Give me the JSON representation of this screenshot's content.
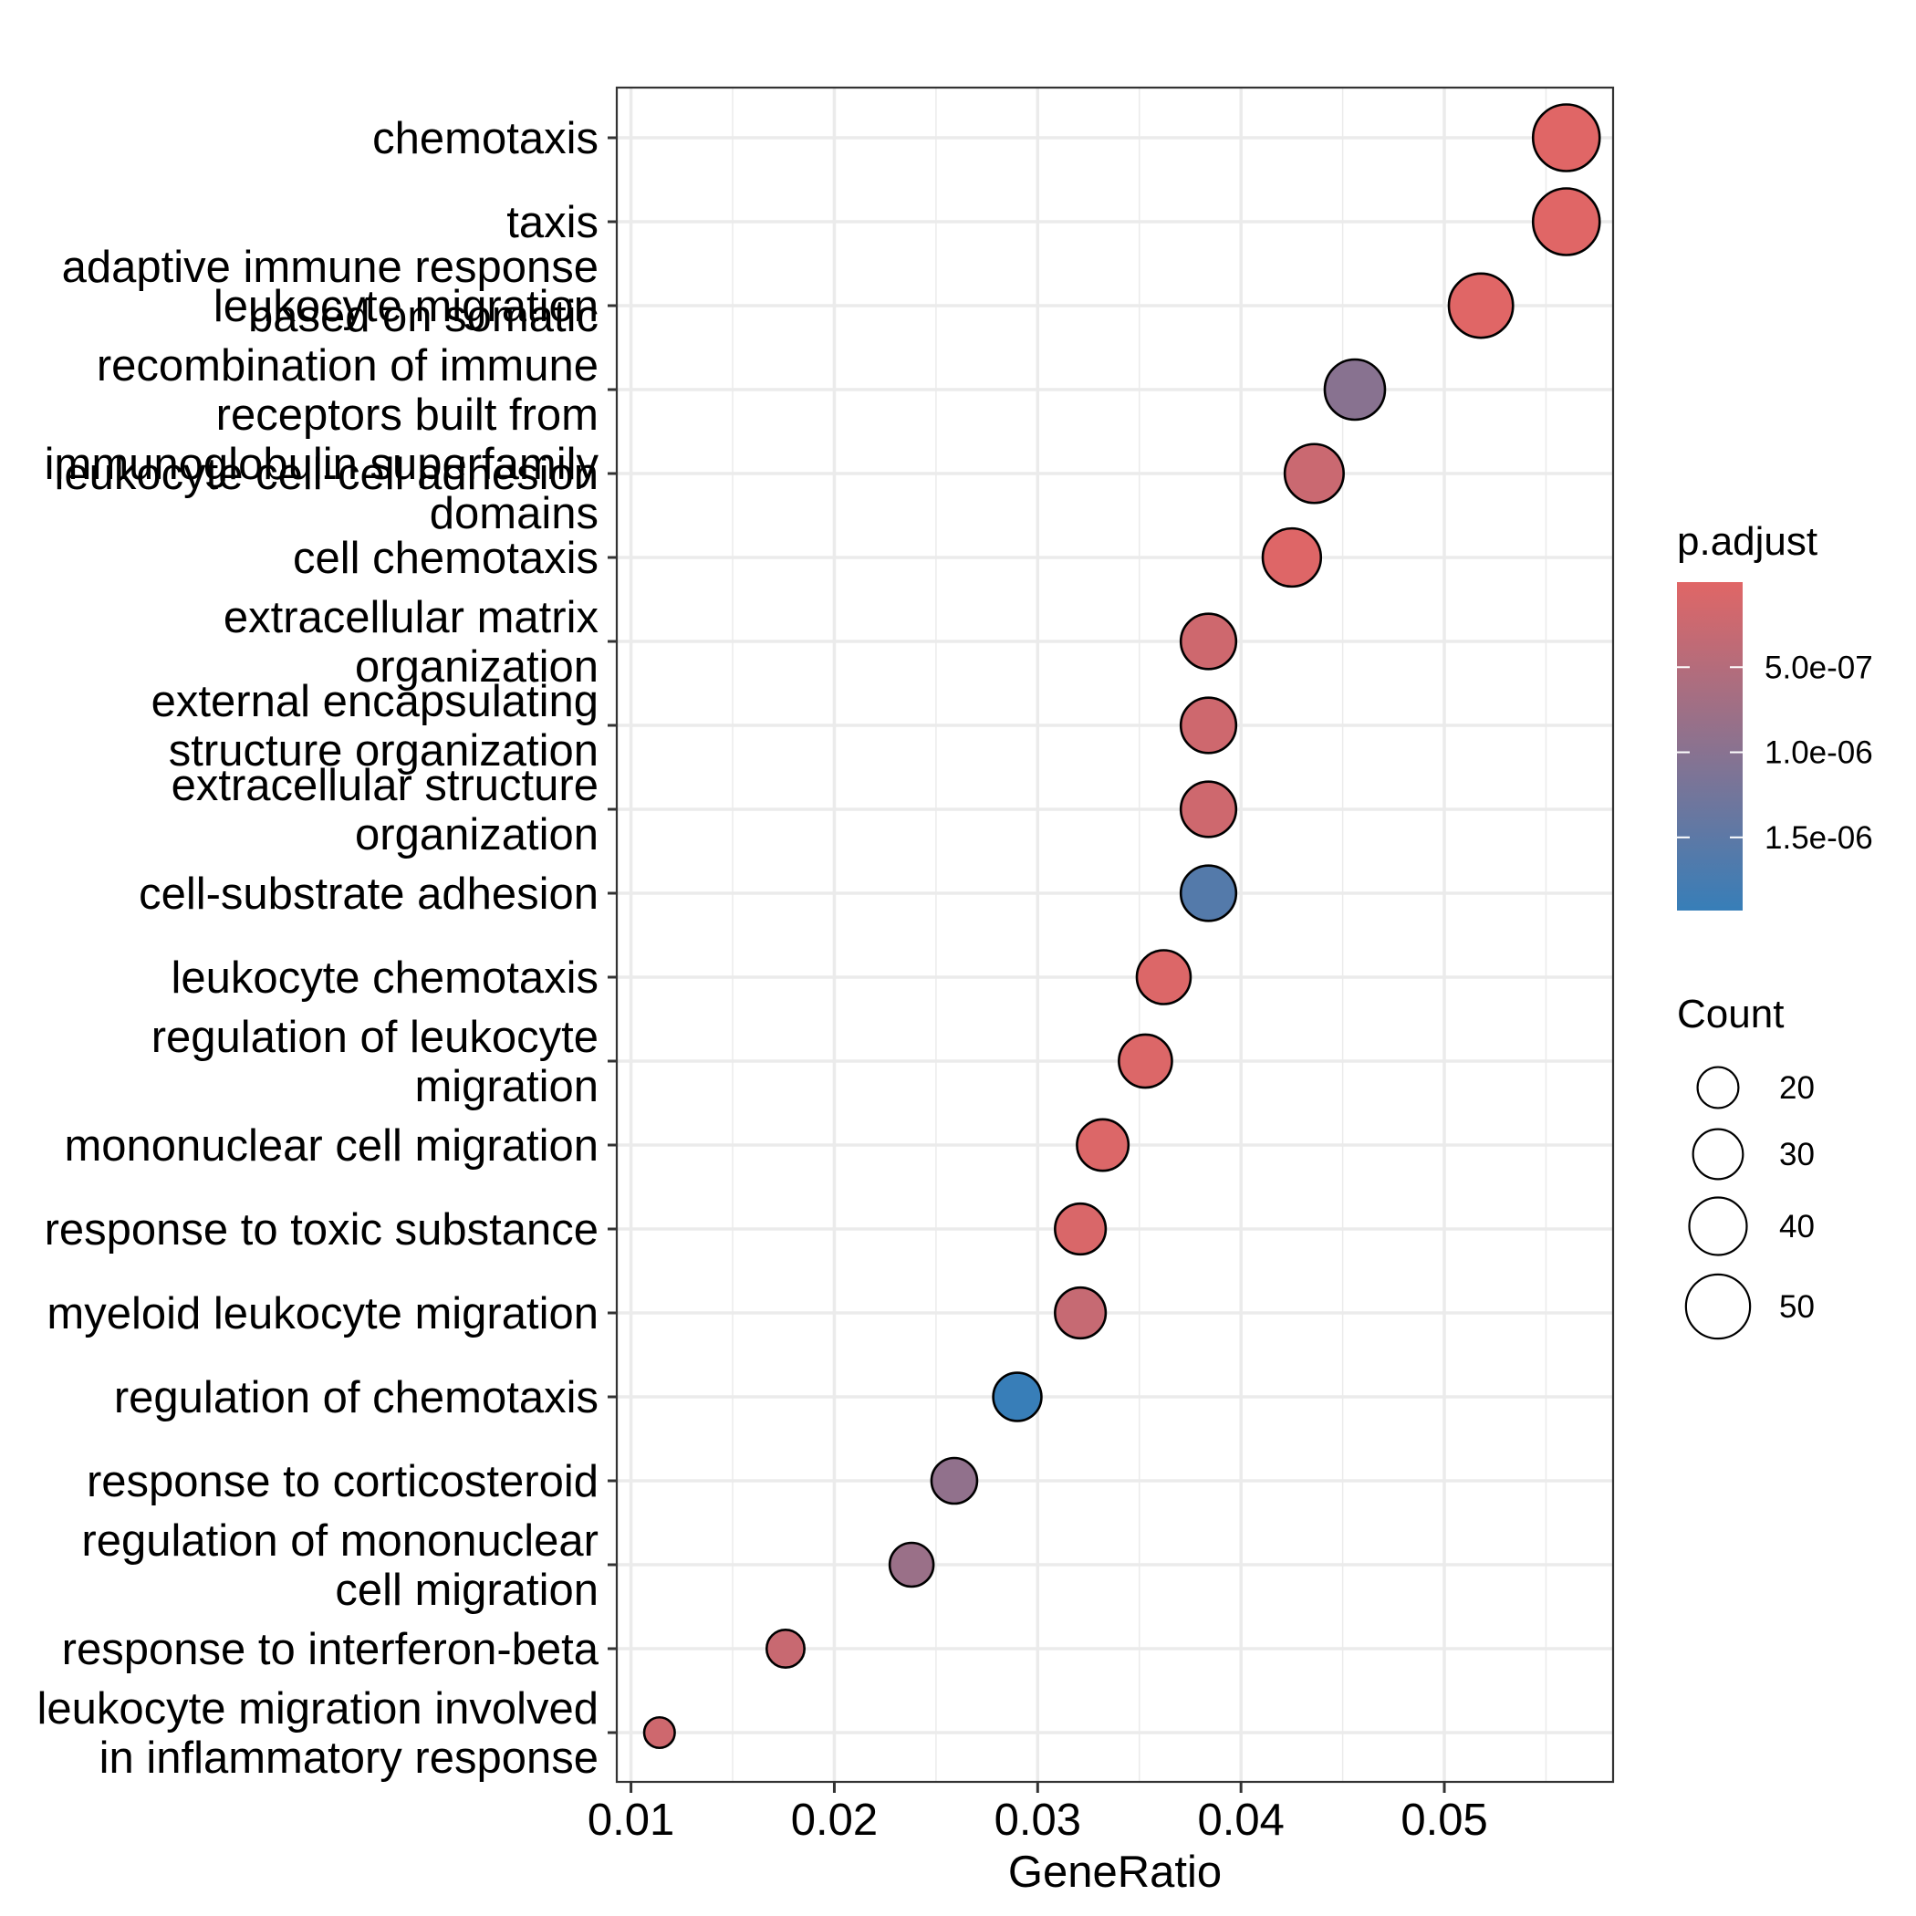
{
  "chart_data": {
    "type": "scatter",
    "subtype": "dotplot",
    "title": "",
    "xlabel": "GeneRatio",
    "ylabel": "",
    "xlim": [
      0.0093,
      0.0583
    ],
    "xticks": [
      0.01,
      0.02,
      0.03,
      0.04,
      0.05
    ],
    "xtick_labels": [
      "0.01",
      "0.02",
      "0.03",
      "0.04",
      "0.05"
    ],
    "grid": true,
    "categories": [
      "chemotaxis",
      "taxis",
      "leukocyte migration",
      "adaptive immune response based on somatic recombination of immune receptors built from immunoglobulin superfamily domains",
      "leukocyte cell-cell adhesion",
      "cell chemotaxis",
      "extracellular matrix organization",
      "external encapsulating structure organization",
      "extracellular structure organization",
      "cell-substrate adhesion",
      "leukocyte chemotaxis",
      "regulation of leukocyte migration",
      "mononuclear cell migration",
      "response to toxic substance",
      "myeloid leukocyte migration",
      "regulation of chemotaxis",
      "response to corticosteroid",
      "regulation of mononuclear cell migration",
      "response to interferon-beta",
      "leukocyte migration involved in inflammatory response"
    ],
    "category_label_lines": [
      [
        "chemotaxis"
      ],
      [
        "taxis"
      ],
      [
        "leukocyte migration"
      ],
      [
        "adaptive immune response",
        "based on somatic",
        "recombination of immune",
        "receptors built from",
        "immunoglobulin superfamily",
        "domains"
      ],
      [
        "leukocyte cell-cell adhesion"
      ],
      [
        "cell chemotaxis"
      ],
      [
        "extracellular matrix",
        "organization"
      ],
      [
        "external encapsulating",
        "structure organization"
      ],
      [
        "extracellular structure",
        "organization"
      ],
      [
        "cell-substrate adhesion"
      ],
      [
        "leukocyte chemotaxis"
      ],
      [
        "regulation of leukocyte",
        "migration"
      ],
      [
        "mononuclear cell migration"
      ],
      [
        "response to toxic substance"
      ],
      [
        "myeloid leukocyte migration"
      ],
      [
        "regulation of chemotaxis"
      ],
      [
        "response to corticosteroid"
      ],
      [
        "regulation of mononuclear",
        "cell migration"
      ],
      [
        "response to interferon-beta"
      ],
      [
        "leukocyte migration involved",
        "in inflammatory response"
      ]
    ],
    "gene_ratio": [
      0.056,
      0.056,
      0.0518,
      0.0456,
      0.0436,
      0.0425,
      0.0384,
      0.0384,
      0.0384,
      0.0384,
      0.0362,
      0.0353,
      0.0332,
      0.0321,
      0.0321,
      0.029,
      0.0259,
      0.0238,
      0.0176,
      0.0114
    ],
    "count": [
      54,
      54,
      50,
      44,
      42,
      41,
      37,
      37,
      37,
      37,
      35,
      34,
      32,
      31,
      31,
      28,
      25,
      23,
      17,
      11
    ],
    "p_adjust": [
      1e-09,
      1e-09,
      5e-09,
      1e-06,
      2.5e-07,
      2e-08,
      2e-07,
      2e-07,
      2e-07,
      1.6e-06,
      5e-08,
      5e-08,
      5e-08,
      8e-08,
      3e-07,
      1.92e-06,
      9e-07,
      8e-07,
      2.7e-07,
      2e-07
    ],
    "color_legend": {
      "title": "p.adjust",
      "range": [
        0,
        1.93e-06
      ],
      "ticks": [
        5e-07,
        1e-06,
        1.5e-06
      ],
      "tick_labels": [
        "5.0e-07",
        "1.0e-06",
        "1.5e-06"
      ],
      "low_color": "#E06666",
      "high_color": "#377EB8"
    },
    "size_legend": {
      "title": "Count",
      "values": [
        20,
        30,
        40,
        50
      ],
      "labels": [
        "20",
        "30",
        "40",
        "50"
      ]
    },
    "legend_position": "right"
  }
}
